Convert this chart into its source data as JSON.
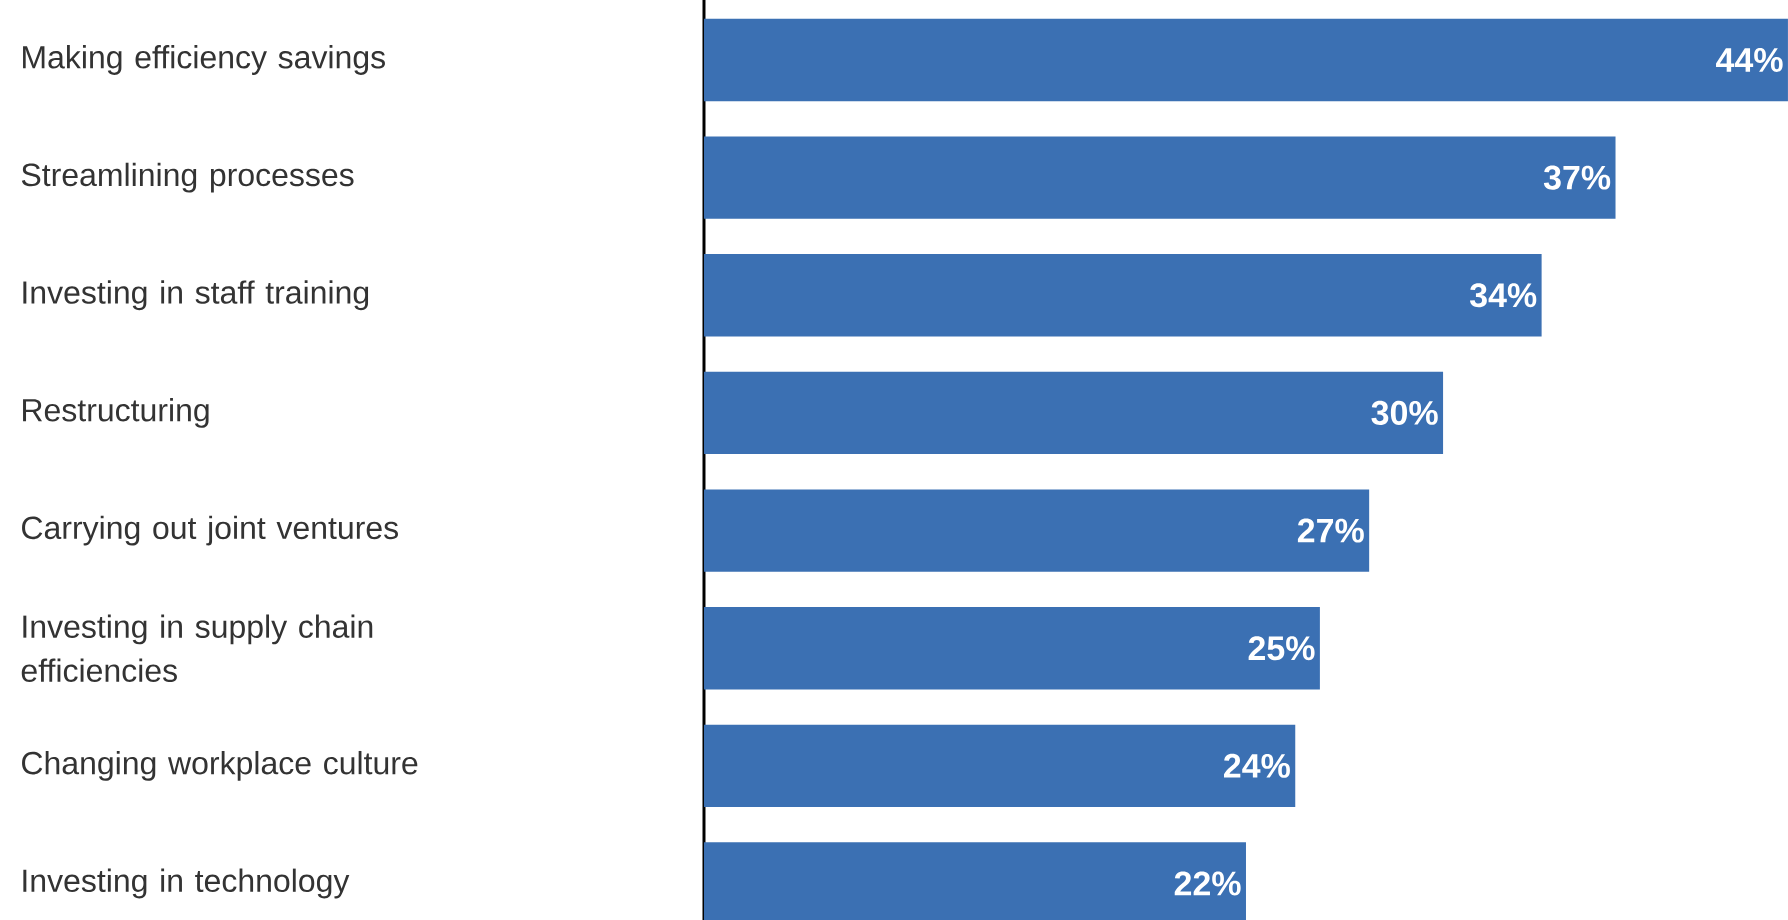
{
  "chart_data": {
    "type": "bar",
    "orientation": "horizontal",
    "tick_labels": "y",
    "categories": [
      "Making efficiency savings",
      "Streamlining processes",
      "Investing in staff training",
      "Restructuring",
      "Carrying out joint ventures",
      "Investing in supply chain efficiencies",
      "Changing workplace culture",
      "Investing in technology"
    ],
    "values": [
      44,
      37,
      34,
      30,
      27,
      25,
      24,
      22
    ],
    "value_labels": [
      "44%",
      "37%",
      "34%",
      "30%",
      "27%",
      "25%",
      "24%",
      "22%"
    ],
    "color": "#3b70b3",
    "xlim": [
      0,
      44
    ]
  }
}
